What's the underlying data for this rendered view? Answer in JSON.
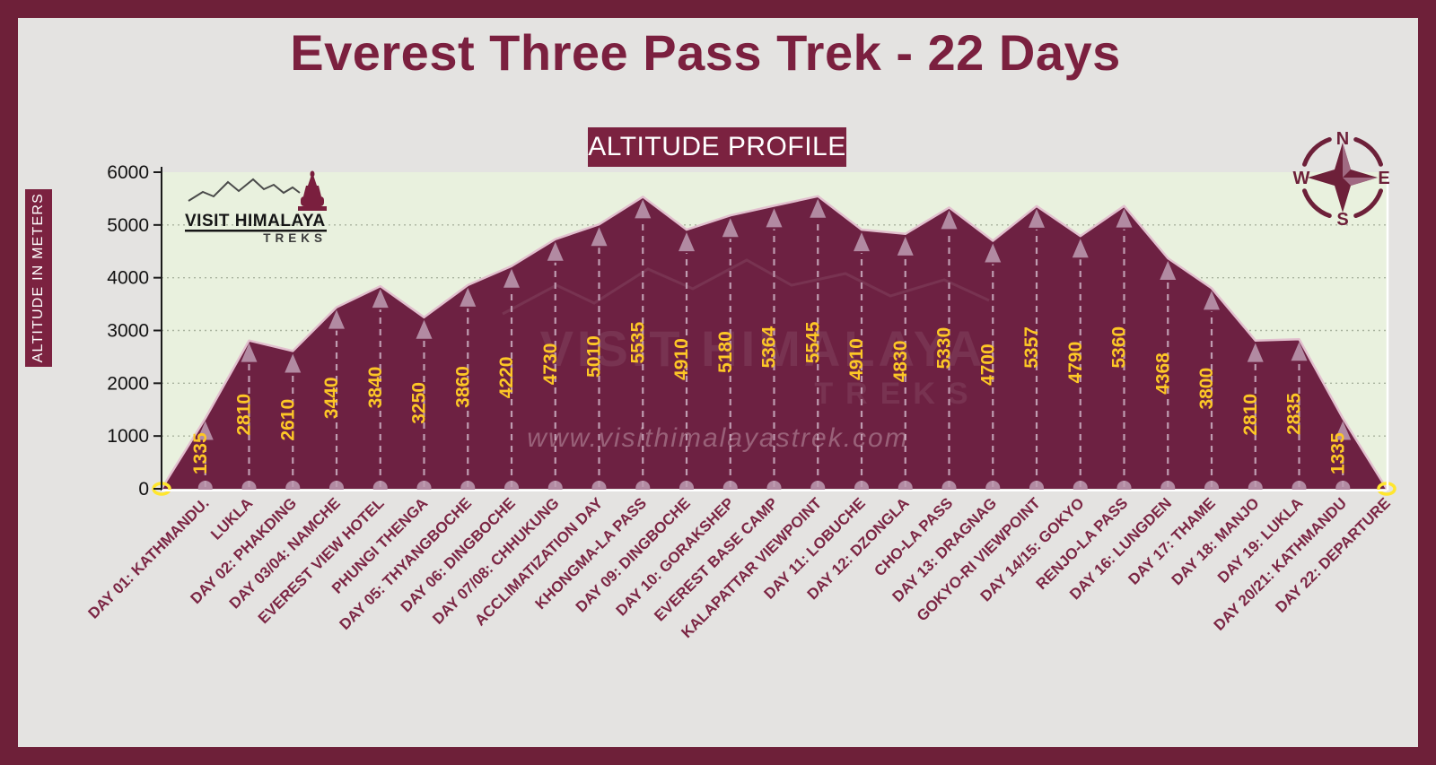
{
  "title": "Everest Three Pass Trek - 22 Days",
  "subtitle_badge": "ALTITUDE PROFILE",
  "y_axis_label": "ALTITUDE IN METERS",
  "watermark": "www.visithimalayastrek.com",
  "logo": {
    "line1": "VISIT HIMALAYA",
    "line2": "TREKS"
  },
  "compass": {
    "n": "N",
    "e": "E",
    "s": "S",
    "w": "W"
  },
  "colors": {
    "frame": "#6e2039",
    "page_bg": "#e4e3e1",
    "plot_bg": "#e9f1de",
    "area": "#6d2142",
    "area_outline": "#e2bfce",
    "gridline": "#a9b39f",
    "dash": "#bf9cb1",
    "marker": "#b28aa2",
    "value_label": "#fdc726",
    "x_label": "#7b2644",
    "axis": "#1a1a1a",
    "title": "#7b203f",
    "badge_bg": "#7b2240",
    "badge_text": "#ffffff",
    "ring": "#ffe62e",
    "watermark": "rgba(255,246,250,0.30)",
    "compass": "#6d2039"
  },
  "chart_data": {
    "type": "area",
    "title": "ALTITUDE PROFILE",
    "xlabel": "",
    "ylabel": "ALTITUDE IN METERS",
    "ylim": [
      0,
      6000
    ],
    "yticks": [
      0,
      1000,
      2000,
      3000,
      4000,
      5000,
      6000
    ],
    "grid": "horizontal-dotted",
    "legend": "none",
    "origin_value": 0,
    "endpoints_marked_zero": true,
    "value_labels_visible": true,
    "categories": [
      "DAY 01: KATHMANDU.",
      "LUKLA",
      "DAY 02: PHAKDING",
      "DAY 03/04: NAMCHE",
      "EVEREST VIEW HOTEL",
      "PHUNGI THENGA",
      "DAY 05: THYANGBOCHE",
      "DAY 06: DINGBOCHE",
      "DAY 07/08: CHHUKUNG",
      "ACCLIMATIZATION DAY",
      "KHONGMA-LA PASS",
      "DAY 09: DINGBOCHE",
      "DAY 10: GORAKSHEP",
      "EVEREST BASE CAMP",
      "KALAPATTAR VIEWPOINT",
      "DAY 11: LOBUCHE",
      "DAY 12: DZONGLA",
      "CHO-LA PASS",
      "DAY 13: DRAGNAG",
      "GOKYO-RI VIEWPOINT",
      "DAY 14/15: GOKYO",
      "RENJO-LA PASS",
      "DAY 16: LUNGDEN",
      "DAY 17: THAME",
      "DAY 18: MANJO",
      "DAY 19: LUKLA",
      "DAY 20/21: KATHMANDU",
      "DAY 22: DEPARTURE"
    ],
    "values": [
      1335,
      2810,
      2610,
      3440,
      3840,
      3250,
      3860,
      4220,
      4730,
      5010,
      5535,
      4910,
      5180,
      5364,
      5545,
      4910,
      4830,
      5330,
      4700,
      5357,
      4790,
      5360,
      4368,
      3800,
      2810,
      2835,
      1335,
      0
    ]
  }
}
